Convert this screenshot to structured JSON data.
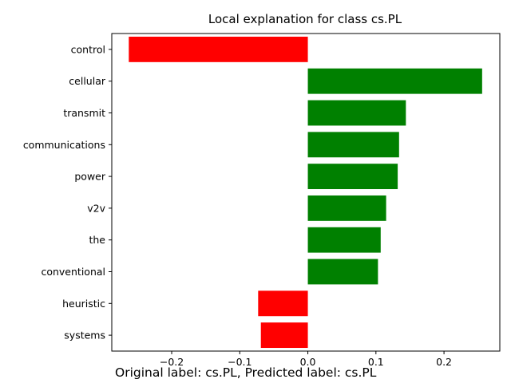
{
  "chart_data": {
    "type": "bar",
    "orientation": "horizontal",
    "title": "Local explanation for class cs.PL",
    "categories": [
      "control",
      "cellular",
      "transmit",
      "communications",
      "power",
      "v2v",
      "the",
      "conventional",
      "heuristic",
      "systems"
    ],
    "values": [
      -0.263,
      0.256,
      0.144,
      0.134,
      0.132,
      0.115,
      0.107,
      0.103,
      -0.073,
      -0.069
    ],
    "xlim": [
      -0.288,
      0.282
    ],
    "xticks": [
      -0.2,
      -0.1,
      0.0,
      0.1,
      0.2
    ],
    "xtick_labels": [
      "−0.2",
      "−0.1",
      "0.0",
      "0.1",
      "0.2"
    ],
    "xlabel": "",
    "ylabel": "",
    "grid": false,
    "colors": {
      "positive": "#008000",
      "negative": "#ff0000"
    }
  },
  "caption": "Original label: cs.PL, Predicted label: cs.PL"
}
